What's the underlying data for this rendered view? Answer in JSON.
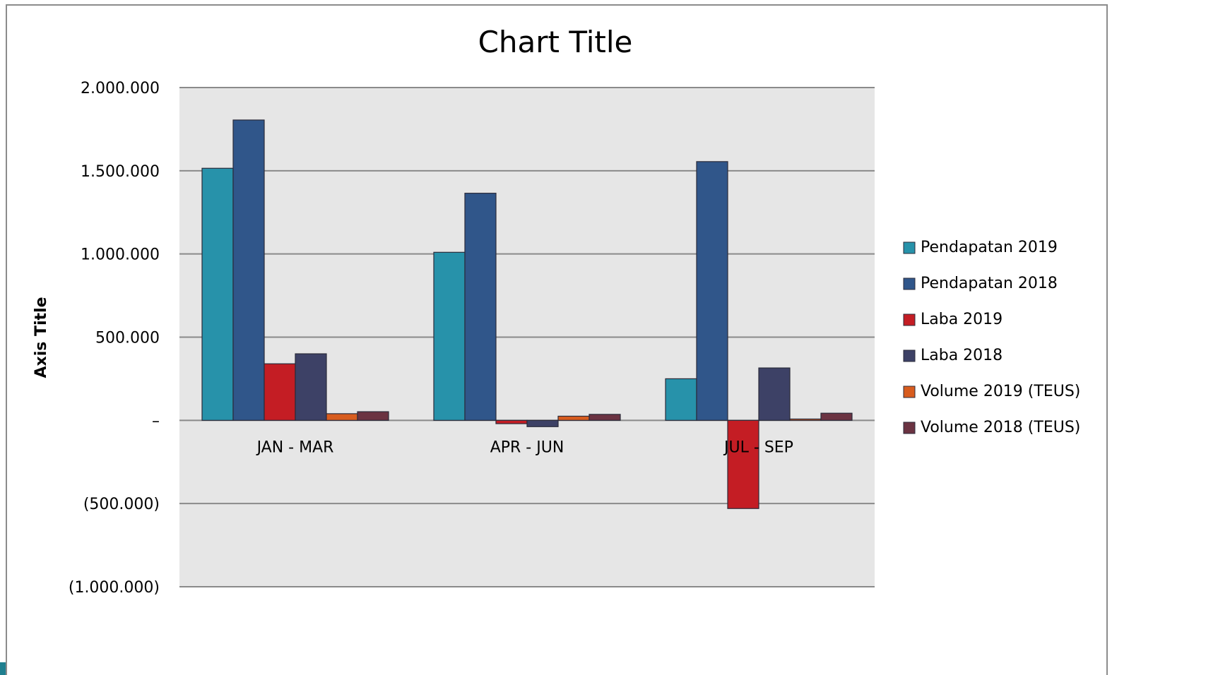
{
  "chart_data": {
    "type": "bar",
    "title": "Chart Title",
    "xlabel": "",
    "ylabel": "Axis Title",
    "categories": [
      "JAN - MAR",
      "APR - JUN",
      "JUL - SEP"
    ],
    "ylim": [
      -1000000,
      2000000
    ],
    "yticks": [
      2000000,
      1500000,
      1000000,
      500000,
      0,
      -500000,
      -1000000
    ],
    "ytick_labels": [
      "2.000.000",
      "1.500.000",
      "1.000.000",
      "500.000",
      "–",
      "(500.000)",
      "(1.000.000)"
    ],
    "grid": true,
    "legend_position": "right",
    "plot_background": "#e6e6e6",
    "series": [
      {
        "name": "Pendapatan 2019",
        "color": "#2792aa",
        "values": [
          1515000,
          1010000,
          250000
        ]
      },
      {
        "name": "Pendapatan 2018",
        "color": "#30568a",
        "values": [
          1805000,
          1365000,
          1555000
        ]
      },
      {
        "name": "Laba 2019",
        "color": "#c41d24",
        "values": [
          340000,
          -20000,
          -530000
        ]
      },
      {
        "name": "Laba 2018",
        "color": "#3d4166",
        "values": [
          400000,
          -38000,
          315000
        ]
      },
      {
        "name": "Volume 2019 (TEUS)",
        "color": "#d85c1e",
        "values": [
          40000,
          25000,
          8000
        ]
      },
      {
        "name": "Volume 2018 (TEUS)",
        "color": "#6b3342",
        "values": [
          52000,
          36000,
          43000
        ]
      }
    ]
  }
}
